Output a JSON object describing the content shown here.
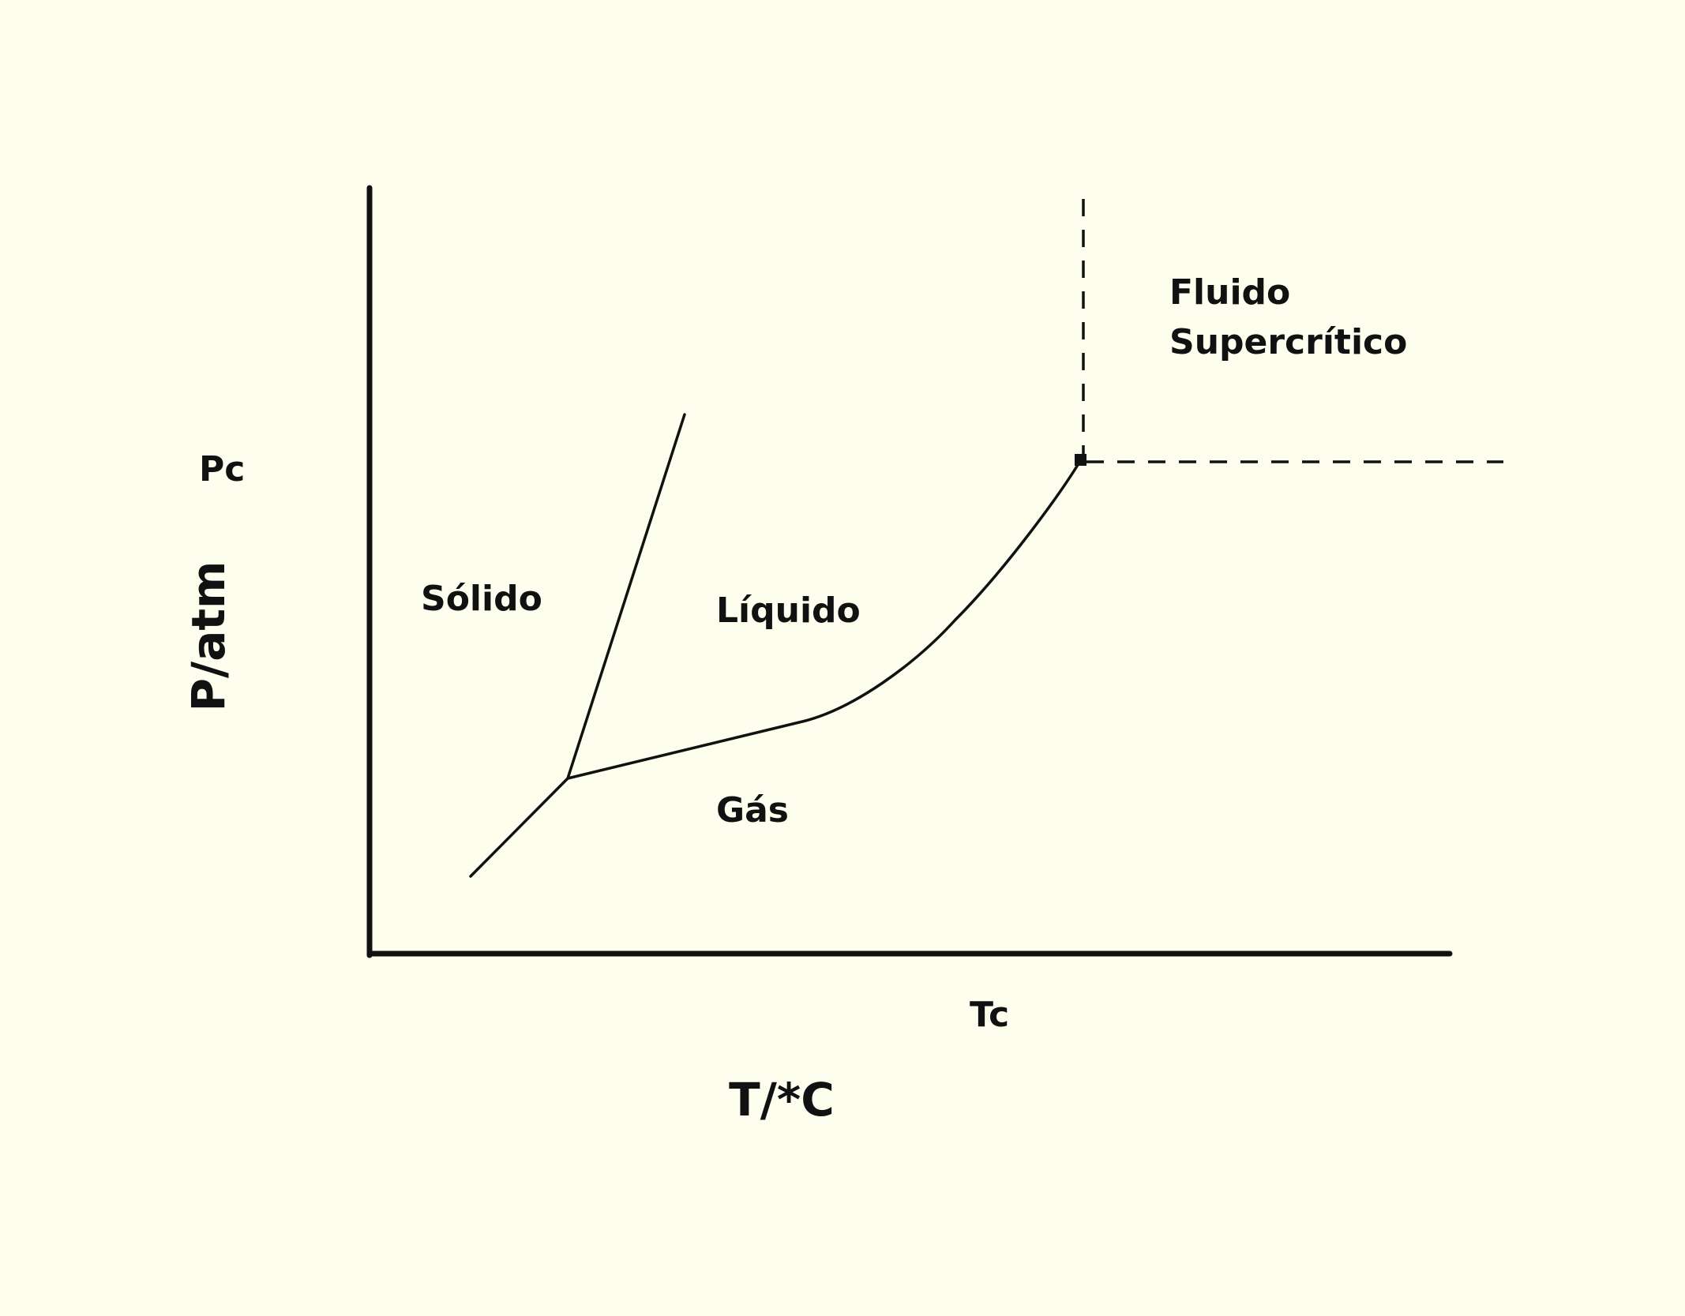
{
  "diagram": {
    "axes": {
      "y_title": "P/atm",
      "x_title": "T/*C",
      "y_marker": "Pc",
      "x_marker": "Tc"
    },
    "regions": {
      "solid": "Sólido",
      "liquid": "Líquido",
      "gas": "Gás",
      "supercritical_line1": "Fluido",
      "supercritical_line2": "Supercrítico"
    },
    "colors": {
      "background": "#fefeee",
      "ink": "#111111"
    }
  }
}
